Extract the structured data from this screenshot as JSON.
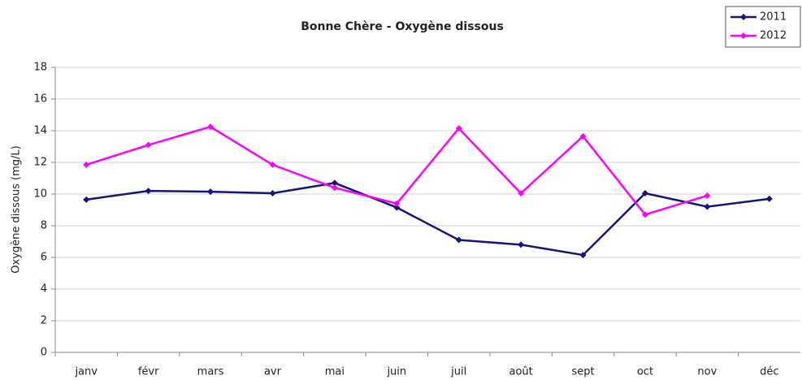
{
  "chart_data": {
    "type": "line",
    "title": "Bonne Chère - Oxygène dissous",
    "y_label": "Oxygène dissous (mg/L)",
    "categories": [
      "janv",
      "févr",
      "mars",
      "avr",
      "mai",
      "juin",
      "juil",
      "août",
      "sept",
      "oct",
      "nov",
      "déc"
    ],
    "series": [
      {
        "name": "2011",
        "color": "#14147a",
        "values": [
          9.65,
          10.2,
          10.15,
          10.05,
          10.7,
          9.15,
          7.1,
          6.8,
          6.15,
          10.05,
          9.2,
          9.7
        ]
      },
      {
        "name": "2012",
        "color": "#ff00ff",
        "values": [
          11.85,
          13.1,
          14.25,
          11.85,
          10.4,
          9.4,
          14.15,
          10.05,
          13.65,
          8.7,
          9.9,
          null
        ]
      }
    ],
    "ylim": [
      0,
      18
    ],
    "yticks": [
      0,
      2,
      4,
      6,
      8,
      10,
      12,
      14,
      16,
      18
    ],
    "grid": true,
    "legend": "top-right"
  }
}
